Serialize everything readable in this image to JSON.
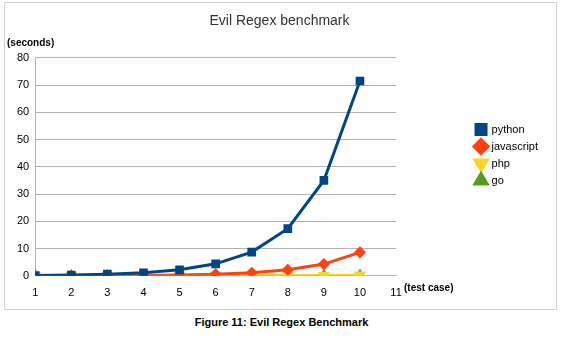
{
  "chart_data": {
    "type": "line",
    "title": "Evil Regex benchmark",
    "y_label": "(seconds)",
    "x_label": "(test case)",
    "caption": "Figure 11: Evil Regex Benchmark",
    "x": [
      1,
      2,
      3,
      4,
      5,
      6,
      7,
      8,
      9,
      10
    ],
    "xlim": [
      1,
      11
    ],
    "xticks": [
      1,
      2,
      3,
      4,
      5,
      6,
      7,
      8,
      9,
      10,
      11
    ],
    "ylim": [
      0,
      80
    ],
    "yticks": [
      0,
      10,
      20,
      30,
      40,
      50,
      60,
      70,
      80
    ],
    "grid": true,
    "legend": "right",
    "series": [
      {
        "name": "python",
        "color": "#004586",
        "marker": "square",
        "values": [
          0.1,
          0.3,
          0.6,
          1.1,
          2.2,
          4.4,
          8.7,
          17.3,
          35,
          71.5
        ]
      },
      {
        "name": "javascript",
        "color": "#ff420e",
        "marker": "diamond",
        "values": [
          0,
          0.05,
          0.1,
          0.15,
          0.3,
          0.6,
          1.1,
          2.2,
          4.3,
          8.6
        ]
      },
      {
        "name": "php",
        "color": "#ffd320",
        "marker": "triangle-down",
        "values": [
          0,
          0,
          0,
          0,
          0,
          0.05,
          0.05,
          0.1,
          0.15,
          0.3
        ]
      },
      {
        "name": "go",
        "color": "#579d1c",
        "marker": "triangle",
        "values": [
          0,
          0,
          0,
          0,
          0,
          0,
          0,
          0,
          0.05,
          0.1
        ]
      }
    ]
  }
}
